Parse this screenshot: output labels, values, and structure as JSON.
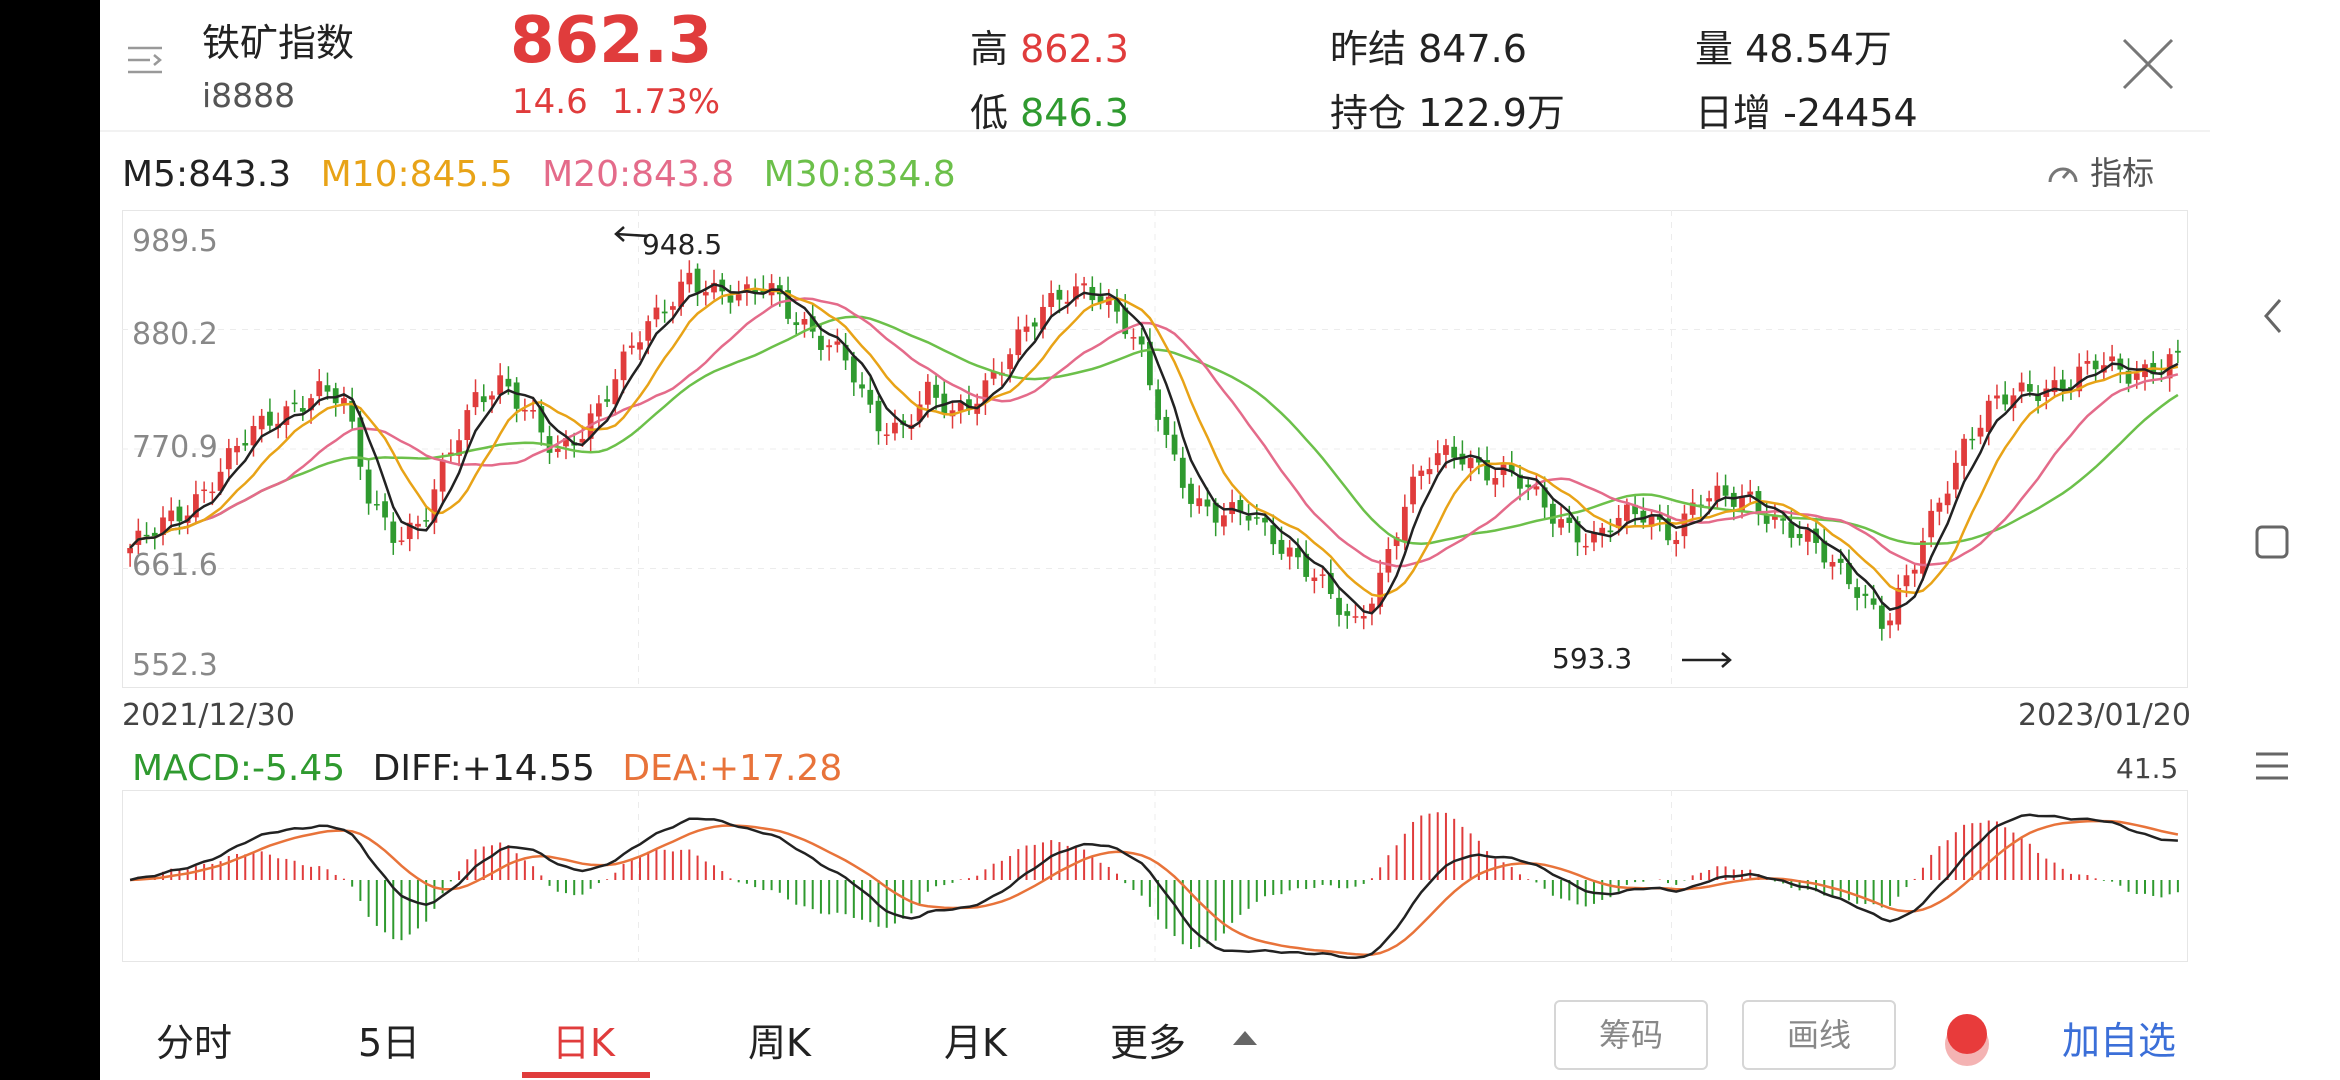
{
  "header": {
    "name": "铁矿指数",
    "code": "i8888",
    "price": "862.3",
    "change": "14.6",
    "change_pct": "1.73%",
    "high_label": "高",
    "high_value": "862.3",
    "low_label": "低",
    "low_value": "846.3",
    "prev_settle_label": "昨结",
    "prev_settle_value": "847.6",
    "open_interest_label": "持仓",
    "open_interest_value": "122.9万",
    "volume_label": "量",
    "volume_value": "48.54万",
    "daily_inc_label": "日增",
    "daily_inc_value": "-24454"
  },
  "ma": {
    "m5": "M5:843.3",
    "m10": "M10:845.5",
    "m20": "M20:843.8",
    "m30": "M30:834.8",
    "indicator_label": "指标"
  },
  "colors": {
    "up": "#e03c3c",
    "down": "#2f9a2f",
    "m5": "#222222",
    "m10": "#e8a317",
    "m20": "#e46b8a",
    "m30": "#6cc04a",
    "accent": "#3b6fd8",
    "dea": "#e8733a"
  },
  "kchart": {
    "y_ticks": [
      "989.5",
      "880.2",
      "770.9",
      "661.6",
      "552.3"
    ],
    "high_mark": "948.5",
    "low_mark": "593.3",
    "date_start": "2021/12/30",
    "date_end": "2023/01/20"
  },
  "macd": {
    "macd": "MACD:-5.45",
    "diff": "DIFF:+14.55",
    "dea": "DEA:+17.28",
    "max": "41.5"
  },
  "tabs": [
    {
      "label": "分时"
    },
    {
      "label": "5日"
    },
    {
      "label": "日K"
    },
    {
      "label": "周K"
    },
    {
      "label": "月K"
    },
    {
      "label": "更多"
    }
  ],
  "active_tab": 2,
  "buttons": {
    "chips": "筹码",
    "draw": "画线",
    "add_watch": "加自选"
  },
  "chart_data": {
    "type": "candlestick",
    "ylim": [
      552.3,
      989.5
    ],
    "ma_legend": [
      "M5",
      "M10",
      "M20",
      "M30"
    ],
    "x_range": [
      "2021/12/30",
      "2023/01/20"
    ],
    "close_trend": [
      675,
      690,
      710,
      740,
      770,
      790,
      810,
      830,
      815,
      720,
      690,
      700,
      760,
      820,
      840,
      800,
      760,
      790,
      830,
      870,
      900,
      940,
      920,
      910,
      930,
      900,
      870,
      850,
      800,
      790,
      820,
      800,
      830,
      860,
      890,
      920,
      930,
      900,
      860,
      780,
      720,
      700,
      710,
      690,
      660,
      630,
      600,
      650,
      720,
      760,
      770,
      750,
      740,
      720,
      700,
      680,
      700,
      710,
      690,
      720,
      720,
      725,
      700,
      680,
      660,
      640,
      600,
      650,
      720,
      780,
      810,
      820,
      830,
      840,
      850,
      840,
      850,
      862.3
    ],
    "high": 948.5,
    "low": 593.3,
    "last": 862.3
  }
}
